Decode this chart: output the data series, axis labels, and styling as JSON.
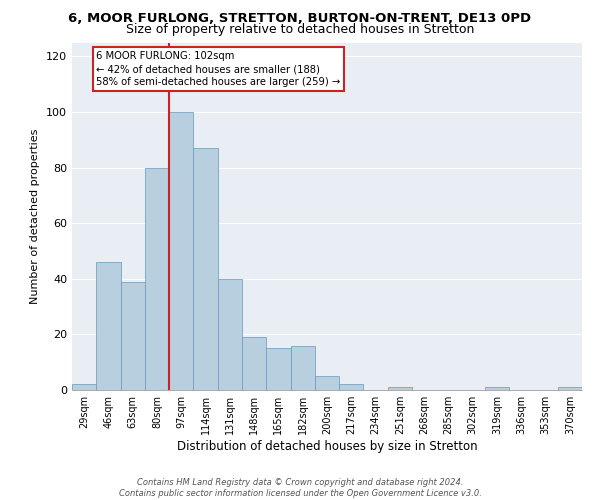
{
  "title": "6, MOOR FURLONG, STRETTON, BURTON-ON-TRENT, DE13 0PD",
  "subtitle": "Size of property relative to detached houses in Stretton",
  "xlabel": "Distribution of detached houses by size in Stretton",
  "ylabel": "Number of detached properties",
  "bar_color": "#b8cfe0",
  "bar_edge_color": "#6699bb",
  "highlight_color": "#cc2222",
  "background_color": "#e8eef4",
  "grid_color": "#c8d4de",
  "categories": [
    "29sqm",
    "46sqm",
    "63sqm",
    "80sqm",
    "97sqm",
    "114sqm",
    "131sqm",
    "148sqm",
    "165sqm",
    "182sqm",
    "200sqm",
    "217sqm",
    "234sqm",
    "251sqm",
    "268sqm",
    "285sqm",
    "302sqm",
    "319sqm",
    "336sqm",
    "353sqm",
    "370sqm"
  ],
  "values": [
    2,
    46,
    39,
    80,
    100,
    87,
    40,
    19,
    15,
    16,
    5,
    2,
    0,
    1,
    0,
    0,
    0,
    1,
    0,
    0,
    1
  ],
  "highlight_bar_index": 4,
  "ylim": [
    0,
    125
  ],
  "yticks": [
    0,
    20,
    40,
    60,
    80,
    100,
    120
  ],
  "annotation_title": "6 MOOR FURLONG: 102sqm",
  "annotation_line1": "← 42% of detached houses are smaller (188)",
  "annotation_line2": "58% of semi-detached houses are larger (259) →",
  "footer_line1": "Contains HM Land Registry data © Crown copyright and database right 2024.",
  "footer_line2": "Contains public sector information licensed under the Open Government Licence v3.0."
}
